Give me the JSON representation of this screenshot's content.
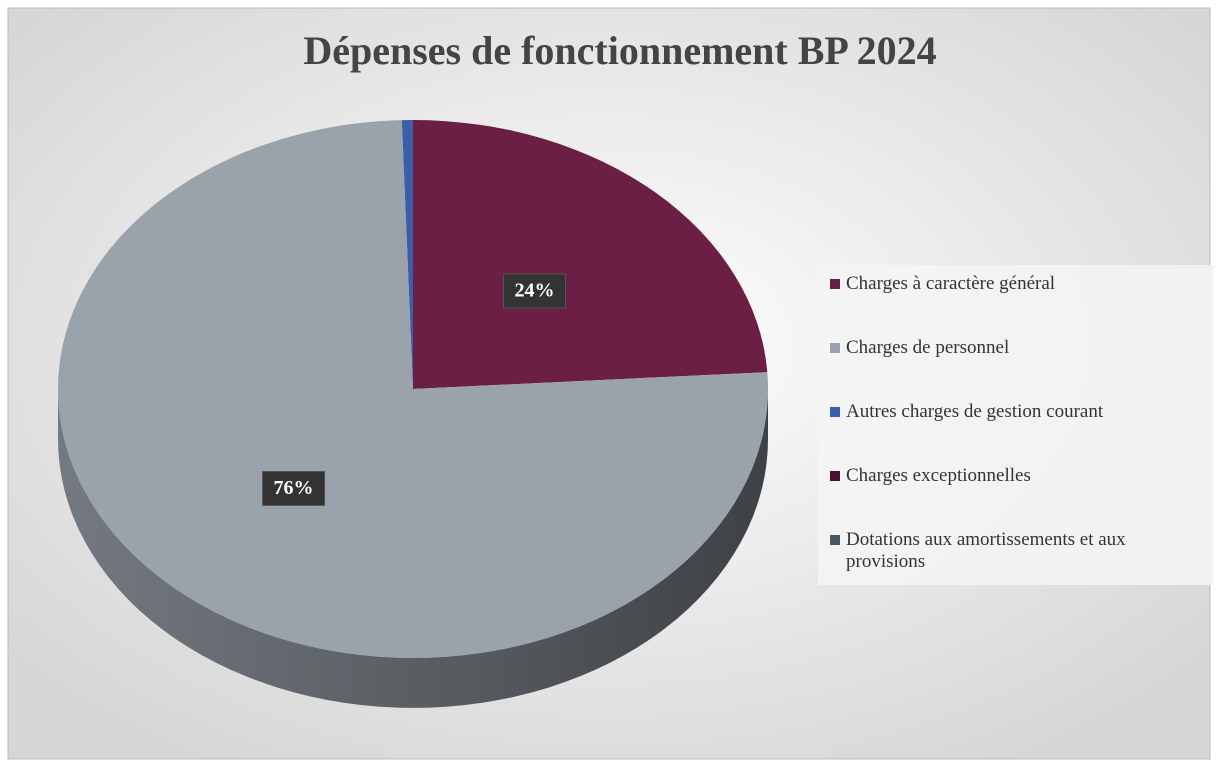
{
  "chart_data": {
    "type": "pie",
    "title": "Dépenses de fonctionnement BP 2024",
    "categories": [
      "Charges à caractère général",
      "Charges de personnel",
      "Autres charges de gestion courant",
      "Charges exceptionnelles",
      "Dotations aux amortissements et aux provisions"
    ],
    "values": [
      24,
      75.5,
      0.5,
      0,
      0
    ],
    "value_labels": [
      "24%",
      "76%",
      null,
      null,
      null
    ],
    "colors": [
      "#6b1f45",
      "#9aa2ab",
      "#3a5fa8",
      "#4a1030",
      "#4b5660"
    ]
  }
}
